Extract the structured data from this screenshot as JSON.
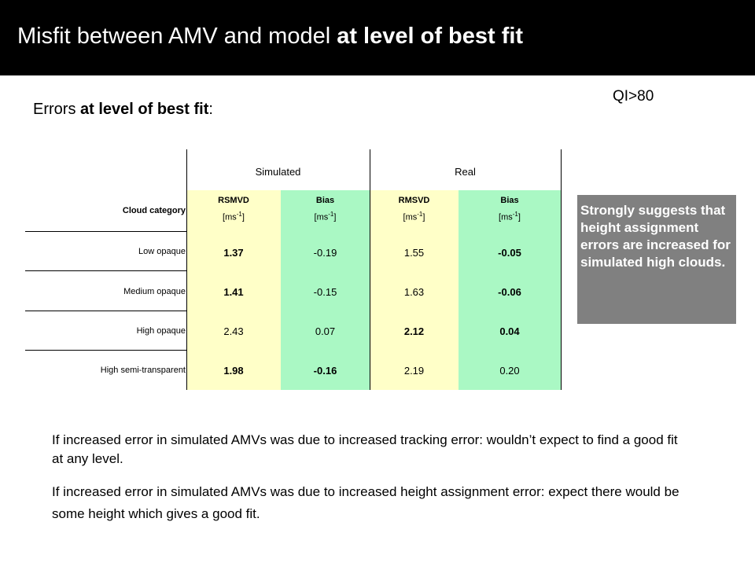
{
  "slide": {
    "title_normal": "Misfit between AMV and model ",
    "title_bold": "at level of best fit",
    "subtitle_normal": "Errors ",
    "subtitle_bold": "at level of best fit",
    "subtitle_suffix": ":",
    "qi_label": "QI>80"
  },
  "table": {
    "groups": [
      "Simulated",
      "Real"
    ],
    "row_header": "Cloud category",
    "columns": [
      {
        "name": "RSMVD",
        "unit": "[ms-1]"
      },
      {
        "name": "Bias",
        "unit": "[ms-1]"
      },
      {
        "name": "RMSVD",
        "unit": "[ms-1]"
      },
      {
        "name": "Bias",
        "unit": "[ms-1]"
      }
    ],
    "unit_text": "[ms",
    "unit_sup": "-1",
    "unit_close": "]",
    "rows": [
      {
        "label": "Low opaque",
        "values": [
          "1.37",
          "-0.19",
          "1.55",
          "-0.05"
        ],
        "bold": [
          true,
          false,
          false,
          true
        ]
      },
      {
        "label": "Medium opaque",
        "values": [
          "1.41",
          "-0.15",
          "1.63",
          "-0.06"
        ],
        "bold": [
          true,
          false,
          false,
          true
        ]
      },
      {
        "label": "High opaque",
        "values": [
          "2.43",
          "0.07",
          "2.12",
          "0.04"
        ],
        "bold": [
          false,
          false,
          true,
          true
        ]
      },
      {
        "label": "High semi-transparent",
        "values": [
          "1.98",
          "-0.16",
          "2.19",
          "0.20"
        ],
        "bold": [
          true,
          true,
          false,
          false
        ]
      }
    ],
    "colors": {
      "yellow": "#ffffc8",
      "green": "#aaf8c4"
    }
  },
  "note": {
    "text": "Strongly suggests that height assignment errors are increased for simulated high clouds.",
    "background": "#808080"
  },
  "paragraphs": [
    "If increased error in simulated AMVs was due to increased tracking error: wouldn’t expect to find a good fit at any level.",
    "If increased error in simulated AMVs was due to increased height assignment error: expect there would be some height which gives a good fit."
  ]
}
